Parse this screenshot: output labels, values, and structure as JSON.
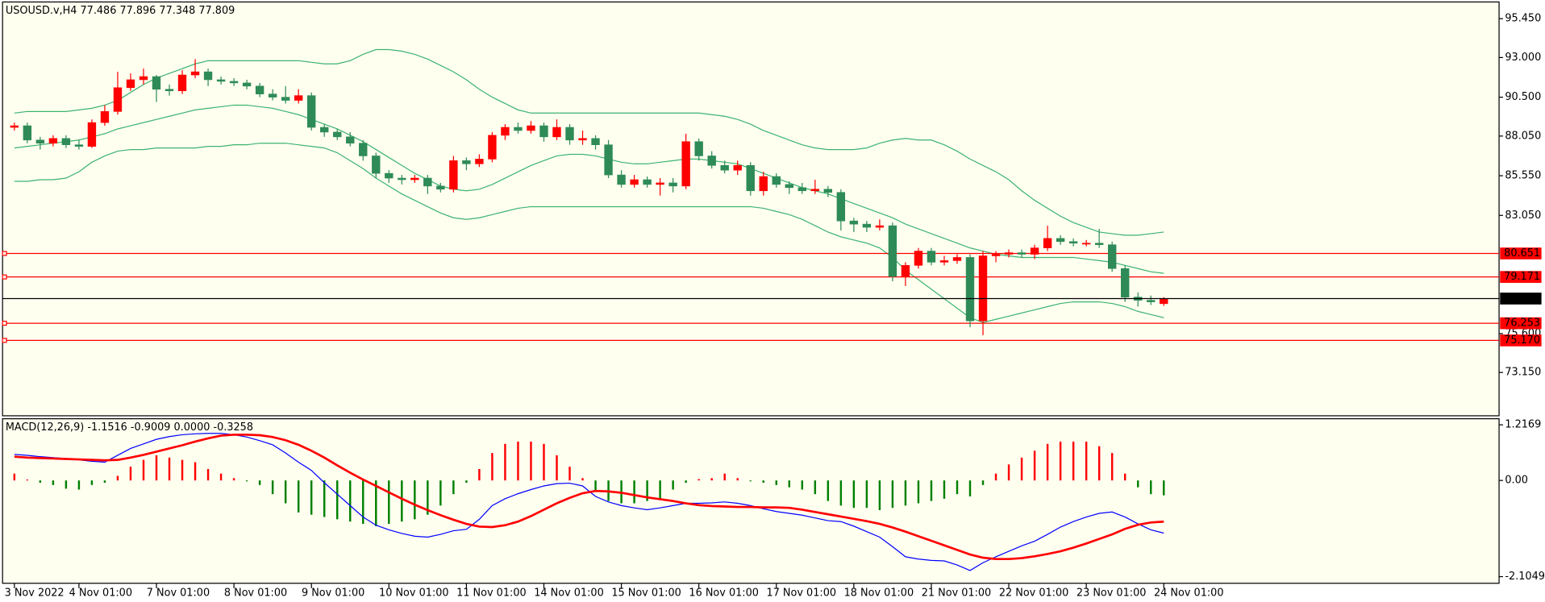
{
  "chart_data": [
    {
      "type": "candlestick",
      "title": "USOUSD.v,H4  77.486 77.896 77.348 77.809",
      "categories": [
        "3 Nov 2022",
        null,
        null,
        null,
        null,
        "4 Nov 01:00",
        null,
        null,
        null,
        null,
        null,
        "7 Nov 01:00",
        null,
        null,
        null,
        null,
        null,
        "8 Nov 01:00",
        null,
        null,
        null,
        null,
        null,
        "9 Nov 01:00",
        null,
        null,
        null,
        null,
        null,
        "10 Nov 01:00",
        null,
        null,
        null,
        null,
        null,
        "11 Nov 01:00",
        null,
        null,
        null,
        null,
        null,
        "14 Nov 01:00",
        null,
        null,
        null,
        null,
        null,
        "15 Nov 01:00",
        null,
        null,
        null,
        null,
        null,
        "16 Nov 01:00",
        null,
        null,
        null,
        null,
        null,
        "17 Nov 01:00",
        null,
        null,
        null,
        null,
        null,
        "18 Nov 01:00",
        null,
        null,
        null,
        null,
        null,
        "21 Nov 01:00",
        null,
        null,
        null,
        null,
        null,
        "22 Nov 01:00",
        null,
        null,
        null,
        null,
        null,
        "23 Nov 01:00",
        null,
        null,
        null,
        null,
        null,
        "24 Nov 01:00"
      ],
      "open": [
        88.6,
        88.7,
        87.8,
        87.6,
        87.9,
        87.5,
        87.4,
        88.9,
        89.6,
        91.1,
        91.6,
        91.8,
        91.0,
        90.9,
        91.9,
        92.1,
        91.6,
        91.5,
        91.4,
        91.2,
        90.7,
        90.5,
        90.3,
        90.6,
        88.6,
        88.3,
        88.0,
        87.6,
        86.8,
        85.7,
        85.4,
        85.3,
        85.4,
        84.9,
        84.7,
        86.5,
        86.3,
        86.6,
        88.1,
        88.6,
        88.4,
        88.7,
        88.0,
        88.6,
        87.8,
        87.9,
        87.5,
        85.6,
        85.0,
        85.3,
        85.0,
        85.1,
        84.9,
        87.7,
        86.8,
        86.2,
        85.9,
        86.2,
        84.6,
        85.5,
        85.0,
        84.8,
        84.6,
        84.7,
        84.5,
        82.7,
        82.5,
        82.3,
        82.4,
        79.2,
        79.9,
        80.8,
        80.1,
        80.2,
        80.4,
        76.4,
        80.5,
        80.6,
        80.7,
        80.6,
        81.0,
        81.6,
        81.4,
        81.3,
        81.3,
        81.2,
        79.7,
        77.9,
        77.7,
        77.486
      ],
      "high": [
        88.9,
        88.9,
        88.0,
        88.1,
        88.1,
        87.8,
        89.1,
        90.0,
        92.1,
        92.0,
        92.3,
        91.9,
        91.3,
        92.2,
        92.9,
        92.3,
        91.8,
        91.7,
        91.6,
        91.4,
        91.0,
        91.2,
        91.0,
        90.8,
        88.8,
        88.5,
        88.3,
        87.8,
        87.0,
        85.9,
        85.6,
        85.6,
        85.6,
        85.1,
        86.8,
        86.7,
        86.9,
        88.3,
        88.8,
        88.9,
        89.0,
        88.9,
        89.1,
        88.8,
        88.4,
        88.1,
        87.8,
        85.9,
        85.6,
        85.5,
        85.4,
        85.4,
        88.2,
        87.9,
        87.1,
        86.5,
        86.5,
        86.4,
        85.8,
        85.7,
        85.2,
        85.1,
        85.3,
        84.9,
        84.7,
        82.9,
        82.7,
        82.8,
        82.6,
        80.1,
        81.0,
        81.0,
        80.5,
        80.6,
        80.6,
        80.8,
        80.8,
        80.9,
        80.9,
        81.2,
        82.4,
        81.8,
        81.6,
        81.5,
        82.2,
        81.4,
        79.9,
        78.2,
        78.0,
        77.896
      ],
      "low": [
        88.4,
        87.6,
        87.2,
        87.4,
        87.3,
        87.2,
        87.3,
        88.7,
        89.4,
        90.9,
        91.3,
        90.2,
        90.6,
        90.7,
        91.7,
        91.2,
        91.3,
        91.2,
        91.0,
        90.5,
        90.3,
        90.1,
        90.1,
        88.4,
        88.0,
        87.8,
        87.4,
        86.5,
        85.4,
        85.1,
        85.0,
        85.1,
        84.4,
        84.5,
        84.5,
        85.9,
        86.1,
        86.4,
        87.8,
        88.2,
        88.2,
        87.7,
        87.8,
        87.5,
        87.5,
        87.2,
        85.4,
        84.8,
        84.8,
        84.8,
        84.3,
        84.5,
        84.7,
        86.5,
        86.0,
        85.7,
        85.6,
        84.3,
        84.3,
        84.8,
        84.4,
        84.4,
        84.4,
        84.2,
        82.1,
        82.0,
        82.0,
        82.1,
        78.9,
        78.6,
        79.7,
        79.9,
        79.9,
        80.0,
        76.0,
        75.5,
        80.1,
        80.4,
        80.4,
        80.3,
        80.8,
        81.2,
        81.1,
        81.1,
        81.0,
        79.5,
        77.6,
        77.3,
        77.4,
        77.348
      ],
      "close": [
        88.7,
        87.8,
        87.6,
        87.9,
        87.5,
        87.4,
        88.9,
        89.6,
        91.1,
        91.6,
        91.8,
        91.0,
        90.9,
        91.9,
        92.1,
        91.6,
        91.5,
        91.4,
        91.2,
        90.7,
        90.5,
        90.3,
        90.6,
        88.6,
        88.3,
        88.0,
        87.6,
        86.8,
        85.7,
        85.4,
        85.3,
        85.4,
        84.9,
        84.7,
        86.5,
        86.3,
        86.6,
        88.1,
        88.6,
        88.4,
        88.7,
        88.0,
        88.6,
        87.8,
        87.9,
        87.5,
        85.6,
        85.0,
        85.3,
        85.0,
        85.1,
        84.9,
        87.7,
        86.8,
        86.2,
        85.9,
        86.2,
        84.6,
        85.5,
        85.0,
        84.8,
        84.6,
        84.7,
        84.5,
        82.7,
        82.5,
        82.3,
        82.4,
        79.2,
        79.9,
        80.8,
        80.1,
        80.2,
        80.4,
        76.4,
        80.5,
        80.6,
        80.7,
        80.6,
        81.0,
        81.6,
        81.4,
        81.3,
        81.3,
        81.2,
        79.7,
        77.9,
        77.7,
        77.6,
        77.809
      ],
      "up_color": "#ff0000",
      "down_color": "#2e8b57",
      "series": [
        {
          "color": "#3cb371",
          "values": [
            89.5,
            89.6,
            89.6,
            89.6,
            89.6,
            89.7,
            89.8,
            90.0,
            90.3,
            90.8,
            91.3,
            91.7,
            92.0,
            92.3,
            92.6,
            92.8,
            92.8,
            92.8,
            92.8,
            92.8,
            92.8,
            92.8,
            92.8,
            92.7,
            92.6,
            92.6,
            92.8,
            93.2,
            93.5,
            93.5,
            93.4,
            93.2,
            92.9,
            92.5,
            92.1,
            91.6,
            91.0,
            90.5,
            90.1,
            89.7,
            89.5,
            89.5,
            89.5,
            89.5,
            89.5,
            89.5,
            89.5,
            89.5,
            89.5,
            89.5,
            89.5,
            89.5,
            89.5,
            89.5,
            89.4,
            89.3,
            89.1,
            88.8,
            88.4,
            88.1,
            87.8,
            87.5,
            87.3,
            87.2,
            87.2,
            87.2,
            87.3,
            87.6,
            87.8,
            87.9,
            87.8,
            87.8,
            87.5,
            87.1,
            86.6,
            86.2,
            85.8,
            85.3,
            84.6,
            84.0,
            83.5,
            83.0,
            82.6,
            82.3,
            82.0,
            81.9,
            81.8,
            81.8,
            81.9,
            82.0
          ]
        },
        {
          "color": "#3cb371",
          "values": [
            87.3,
            87.4,
            87.5,
            87.6,
            87.7,
            87.8,
            88.0,
            88.2,
            88.5,
            88.7,
            88.9,
            89.1,
            89.3,
            89.5,
            89.7,
            89.8,
            89.9,
            90.0,
            90.0,
            89.9,
            89.8,
            89.6,
            89.4,
            89.1,
            88.8,
            88.5,
            88.1,
            87.7,
            87.2,
            86.7,
            86.2,
            85.7,
            85.3,
            84.9,
            84.7,
            84.6,
            84.7,
            85.0,
            85.4,
            85.8,
            86.2,
            86.5,
            86.8,
            86.9,
            86.9,
            86.8,
            86.6,
            86.4,
            86.3,
            86.3,
            86.4,
            86.5,
            86.6,
            86.6,
            86.5,
            86.4,
            86.3,
            86.0,
            85.7,
            85.4,
            85.1,
            84.8,
            84.6,
            84.4,
            84.1,
            83.8,
            83.5,
            83.2,
            82.9,
            82.5,
            82.2,
            81.9,
            81.6,
            81.3,
            81.0,
            80.8,
            80.6,
            80.5,
            80.4,
            80.4,
            80.4,
            80.4,
            80.4,
            80.3,
            80.2,
            80.1,
            79.9,
            79.7,
            79.5,
            79.4
          ]
        },
        {
          "color": "#3cb371",
          "values": [
            85.2,
            85.2,
            85.3,
            85.3,
            85.4,
            85.8,
            86.4,
            86.8,
            87.1,
            87.2,
            87.2,
            87.3,
            87.3,
            87.3,
            87.3,
            87.4,
            87.4,
            87.5,
            87.5,
            87.6,
            87.6,
            87.6,
            87.5,
            87.4,
            87.3,
            87.0,
            86.5,
            86.0,
            85.4,
            84.9,
            84.4,
            84.0,
            83.6,
            83.2,
            82.9,
            82.8,
            82.9,
            83.1,
            83.3,
            83.5,
            83.6,
            83.6,
            83.6,
            83.6,
            83.6,
            83.6,
            83.6,
            83.6,
            83.6,
            83.6,
            83.6,
            83.6,
            83.6,
            83.6,
            83.6,
            83.6,
            83.6,
            83.6,
            83.5,
            83.3,
            83.1,
            82.8,
            82.4,
            82.0,
            81.7,
            81.5,
            81.3,
            81.0,
            80.4,
            79.6,
            79.0,
            78.4,
            77.8,
            77.2,
            76.6,
            76.3,
            76.5,
            76.7,
            76.9,
            77.1,
            77.3,
            77.5,
            77.6,
            77.6,
            77.6,
            77.5,
            77.3,
            77.0,
            76.8,
            76.6
          ]
        }
      ],
      "levels": [
        80.651,
        79.171,
        76.253,
        {
          "value": 75.17,
          "label": "75.170"
        }
      ],
      "level_color": "#ff0000",
      "ylim": [
        70.42,
        96.44
      ],
      "yticks": [
        {
          "value": 95.45,
          "label": "95.450"
        },
        {
          "value": 93,
          "label": "93.000"
        },
        {
          "value": 90.5,
          "label": "90.500"
        },
        {
          "value": 88.05,
          "label": "88.050"
        },
        {
          "value": 85.55,
          "label": "85.550"
        },
        {
          "value": 83.05,
          "label": "83.050"
        },
        {
          "value": 75.6,
          "label": "75.600"
        },
        {
          "value": 73.15,
          "label": "73.150"
        }
      ]
    },
    {
      "type": "macd",
      "title": "MACD(12,26,9) -1.1516 -0.9009 0.0000 -0.3258",
      "values": [
        0.15,
        0.02,
        -0.05,
        -0.1,
        -0.18,
        -0.2,
        -0.1,
        -0.05,
        0.1,
        0.3,
        0.45,
        0.55,
        0.5,
        0.45,
        0.4,
        0.25,
        0.15,
        0.05,
        -0.02,
        -0.1,
        -0.3,
        -0.5,
        -0.7,
        -0.75,
        -0.8,
        -0.85,
        -0.9,
        -0.95,
        -1.0,
        -0.95,
        -0.9,
        -0.85,
        -0.75,
        -0.55,
        -0.3,
        -0.05,
        0.25,
        0.6,
        0.8,
        0.85,
        0.85,
        0.8,
        0.55,
        0.3,
        0.05,
        -0.25,
        -0.45,
        -0.5,
        -0.5,
        -0.45,
        -0.4,
        -0.2,
        -0.05,
        0.03,
        0.05,
        0.15,
        0.05,
        -0.02,
        -0.05,
        -0.1,
        -0.15,
        -0.2,
        -0.3,
        -0.45,
        -0.55,
        -0.6,
        -0.6,
        -0.65,
        -0.6,
        -0.55,
        -0.5,
        -0.45,
        -0.4,
        -0.3,
        -0.35,
        -0.1,
        0.15,
        0.35,
        0.5,
        0.65,
        0.8,
        0.85,
        0.85,
        0.85,
        0.75,
        0.6,
        0.15,
        -0.15,
        -0.3,
        -0.3258
      ],
      "up_color": "#ff0000",
      "down_color": "#008000",
      "series": [
        {
          "color": "#0000ff",
          "width": 1,
          "values": [
            0.57,
            0.55,
            0.52,
            0.5,
            0.48,
            0.45,
            0.42,
            0.4,
            0.55,
            0.7,
            0.8,
            0.9,
            0.96,
            1.0,
            1.02,
            1.03,
            1.03,
            1.0,
            0.95,
            0.87,
            0.78,
            0.6,
            0.4,
            0.22,
            -0.05,
            -0.3,
            -0.55,
            -0.8,
            -0.98,
            -1.08,
            -1.16,
            -1.22,
            -1.24,
            -1.18,
            -1.1,
            -1.07,
            -0.85,
            -0.55,
            -0.4,
            -0.29,
            -0.2,
            -0.12,
            -0.07,
            -0.06,
            -0.12,
            -0.35,
            -0.47,
            -0.55,
            -0.6,
            -0.64,
            -0.6,
            -0.55,
            -0.5,
            -0.5,
            -0.49,
            -0.47,
            -0.5,
            -0.55,
            -0.62,
            -0.68,
            -0.72,
            -0.76,
            -0.82,
            -0.88,
            -0.9,
            -1.0,
            -1.12,
            -1.24,
            -1.45,
            -1.67,
            -1.72,
            -1.75,
            -1.76,
            -1.85,
            -1.97,
            -1.8,
            -1.67,
            -1.55,
            -1.43,
            -1.33,
            -1.18,
            -1.02,
            -0.9,
            -0.8,
            -0.72,
            -0.69,
            -0.8,
            -0.95,
            -1.08,
            -1.1516
          ]
        },
        {
          "color": "#ff0000",
          "width": 2.2,
          "values": [
            0.52,
            0.5,
            0.49,
            0.48,
            0.47,
            0.46,
            0.45,
            0.44,
            0.45,
            0.5,
            0.56,
            0.63,
            0.7,
            0.77,
            0.85,
            0.92,
            0.98,
            1.0,
            1.0,
            0.99,
            0.95,
            0.88,
            0.78,
            0.65,
            0.5,
            0.33,
            0.17,
            0.02,
            -0.12,
            -0.26,
            -0.4,
            -0.53,
            -0.65,
            -0.76,
            -0.86,
            -0.95,
            -1.01,
            -1.02,
            -0.98,
            -0.9,
            -0.78,
            -0.64,
            -0.5,
            -0.38,
            -0.28,
            -0.23,
            -0.24,
            -0.27,
            -0.32,
            -0.37,
            -0.41,
            -0.45,
            -0.5,
            -0.54,
            -0.56,
            -0.57,
            -0.58,
            -0.58,
            -0.59,
            -0.59,
            -0.6,
            -0.64,
            -0.69,
            -0.74,
            -0.79,
            -0.84,
            -0.89,
            -0.95,
            -1.03,
            -1.12,
            -1.22,
            -1.32,
            -1.42,
            -1.52,
            -1.62,
            -1.69,
            -1.72,
            -1.72,
            -1.7,
            -1.66,
            -1.61,
            -1.55,
            -1.47,
            -1.38,
            -1.28,
            -1.18,
            -1.06,
            -0.97,
            -0.92,
            -0.9009
          ]
        }
      ],
      "ylim": [
        -2.25,
        1.35
      ],
      "yticks": [
        1.2169,
        {
          "value": 0,
          "label": "0.00"
        },
        -2.1049
      ]
    }
  ]
}
